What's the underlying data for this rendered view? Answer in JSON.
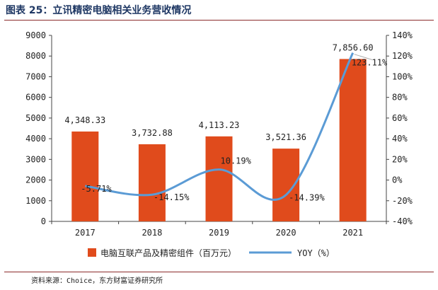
{
  "title": "图表 25：立讯精密电脑相关业务营收情况",
  "source": "资料来源：Choice，东方财富证券研究所",
  "chart_data": {
    "type": "bar",
    "categories": [
      "2017",
      "2018",
      "2019",
      "2020",
      "2021"
    ],
    "series": [
      {
        "name": "电脑互联产品及精密组件（百万元）",
        "type": "bar",
        "axis": "left",
        "color": "#e04b1c",
        "values": [
          4348.33,
          3732.88,
          4113.23,
          3521.36,
          7856.6
        ],
        "labels": [
          "4,348.33",
          "3,732.88",
          "4,113.23",
          "3,521.36",
          "7,856.60"
        ]
      },
      {
        "name": "YOY（%）",
        "type": "line",
        "axis": "right",
        "color": "#5b9bd5",
        "values": [
          -5.71,
          -14.15,
          10.19,
          -14.39,
          123.11
        ],
        "labels": [
          "-5.71%",
          "-14.15%",
          "10.19%",
          "-14.39%",
          "123.11%"
        ]
      }
    ],
    "y_left": {
      "ylim": [
        0,
        9000
      ],
      "ticks": [
        "0",
        "1000",
        "2000",
        "3000",
        "4000",
        "5000",
        "6000",
        "7000",
        "8000",
        "9000"
      ]
    },
    "y_right": {
      "ylim": [
        -40,
        140
      ],
      "ticks": [
        "-40%",
        "-20%",
        "0%",
        "20%",
        "40%",
        "60%",
        "80%",
        "100%",
        "120%",
        "140%"
      ]
    },
    "grid": false,
    "legend": "bottom"
  }
}
